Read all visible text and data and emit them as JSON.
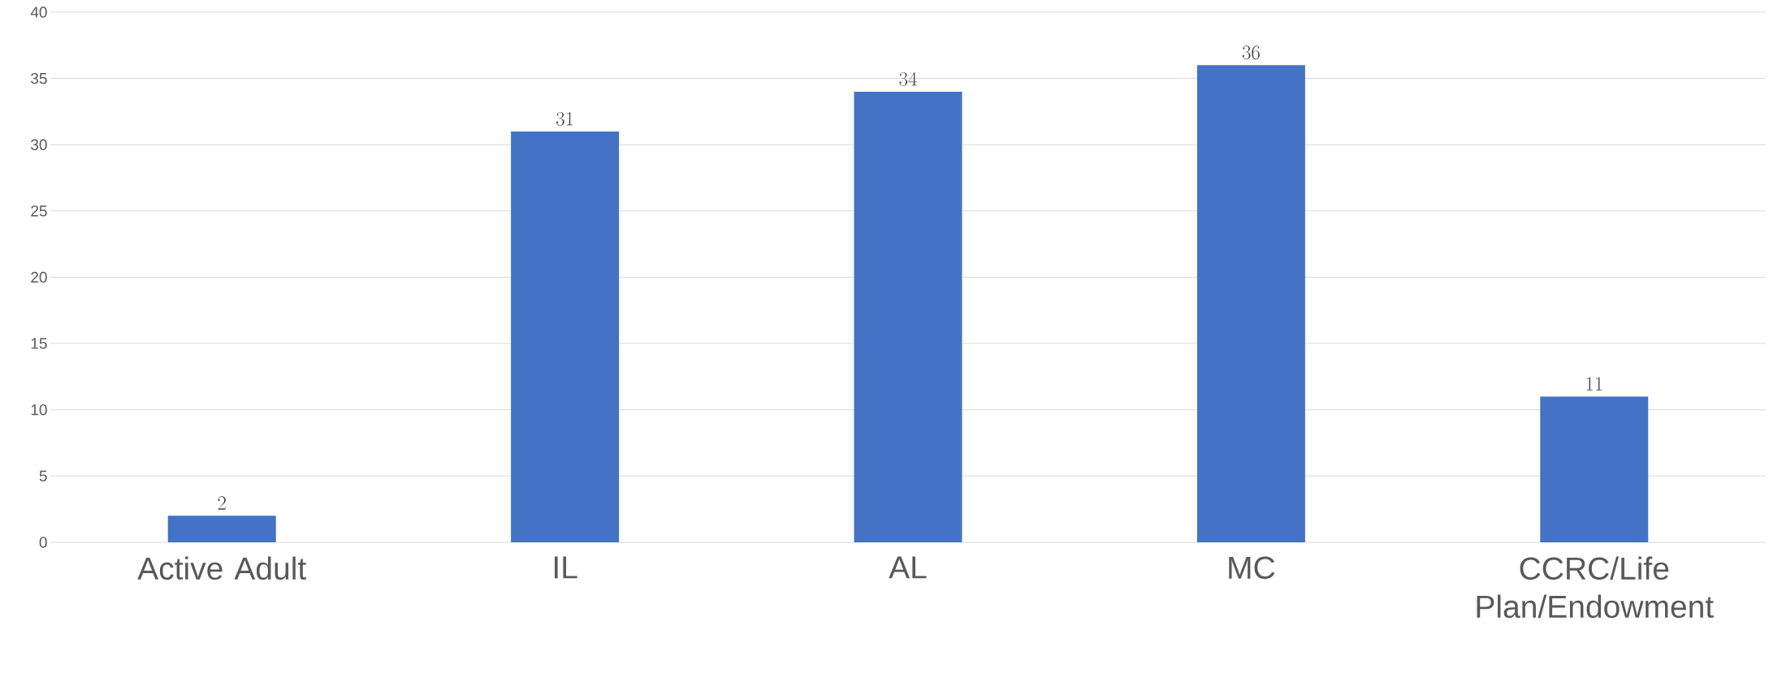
{
  "chart_data": {
    "type": "bar",
    "categories": [
      "Active Adult",
      "IL",
      "AL",
      "MC",
      "CCRC/Life Plan/Endowment"
    ],
    "values": [
      2,
      31,
      34,
      36,
      11
    ],
    "color": "#4472c4",
    "ylim": [
      0,
      40
    ],
    "yticks": [
      0,
      5,
      10,
      15,
      20,
      25,
      30,
      35,
      40
    ],
    "grid": "y",
    "data_labels": true
  }
}
